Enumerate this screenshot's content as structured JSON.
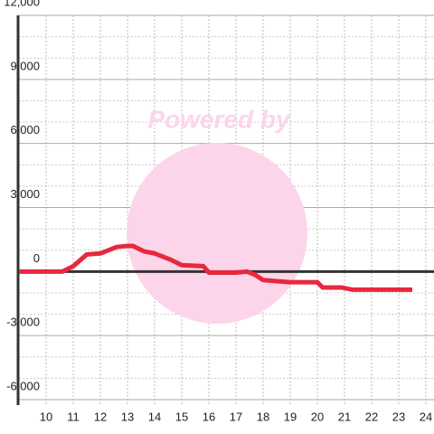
{
  "chart_data": {
    "type": "line",
    "watermark": "Powered by",
    "x": [
      9,
      10.6,
      11,
      11.5,
      12,
      12.6,
      13,
      13.2,
      13.6,
      14,
      14.6,
      15,
      15.8,
      16,
      17,
      17.4,
      17.7,
      18,
      18.5,
      19,
      20,
      20.2,
      20.9,
      21.3,
      22,
      23.5
    ],
    "series": [
      {
        "color": "#e8283c",
        "values": [
          0,
          0,
          250,
          800,
          850,
          1150,
          1200,
          1200,
          950,
          850,
          550,
          300,
          250,
          -50,
          -50,
          0,
          -150,
          -400,
          -450,
          -500,
          -500,
          -750,
          -750,
          -850,
          -850,
          -850
        ]
      }
    ],
    "xlim": [
      9,
      24.3
    ],
    "xticks": [
      10,
      11,
      12,
      13,
      14,
      15,
      16,
      17,
      18,
      19,
      20,
      21,
      22,
      23,
      24
    ],
    "ylim": [
      -6000,
      12000
    ],
    "yticks": [
      {
        "value": -6000,
        "label": "-6,000"
      },
      {
        "value": -3000,
        "label": "-3,000"
      },
      0,
      {
        "value": 3000,
        "label": "3,000"
      },
      {
        "value": 6000,
        "label": "6,000"
      },
      {
        "value": 9000,
        "label": "9,000"
      },
      {
        "value": 12000,
        "label": "12,000"
      }
    ],
    "yminor": [
      -5000,
      -4000,
      -2000,
      -1000,
      1000,
      2000,
      4000,
      5000,
      7000,
      8000,
      10000,
      11000
    ],
    "grid": true
  }
}
